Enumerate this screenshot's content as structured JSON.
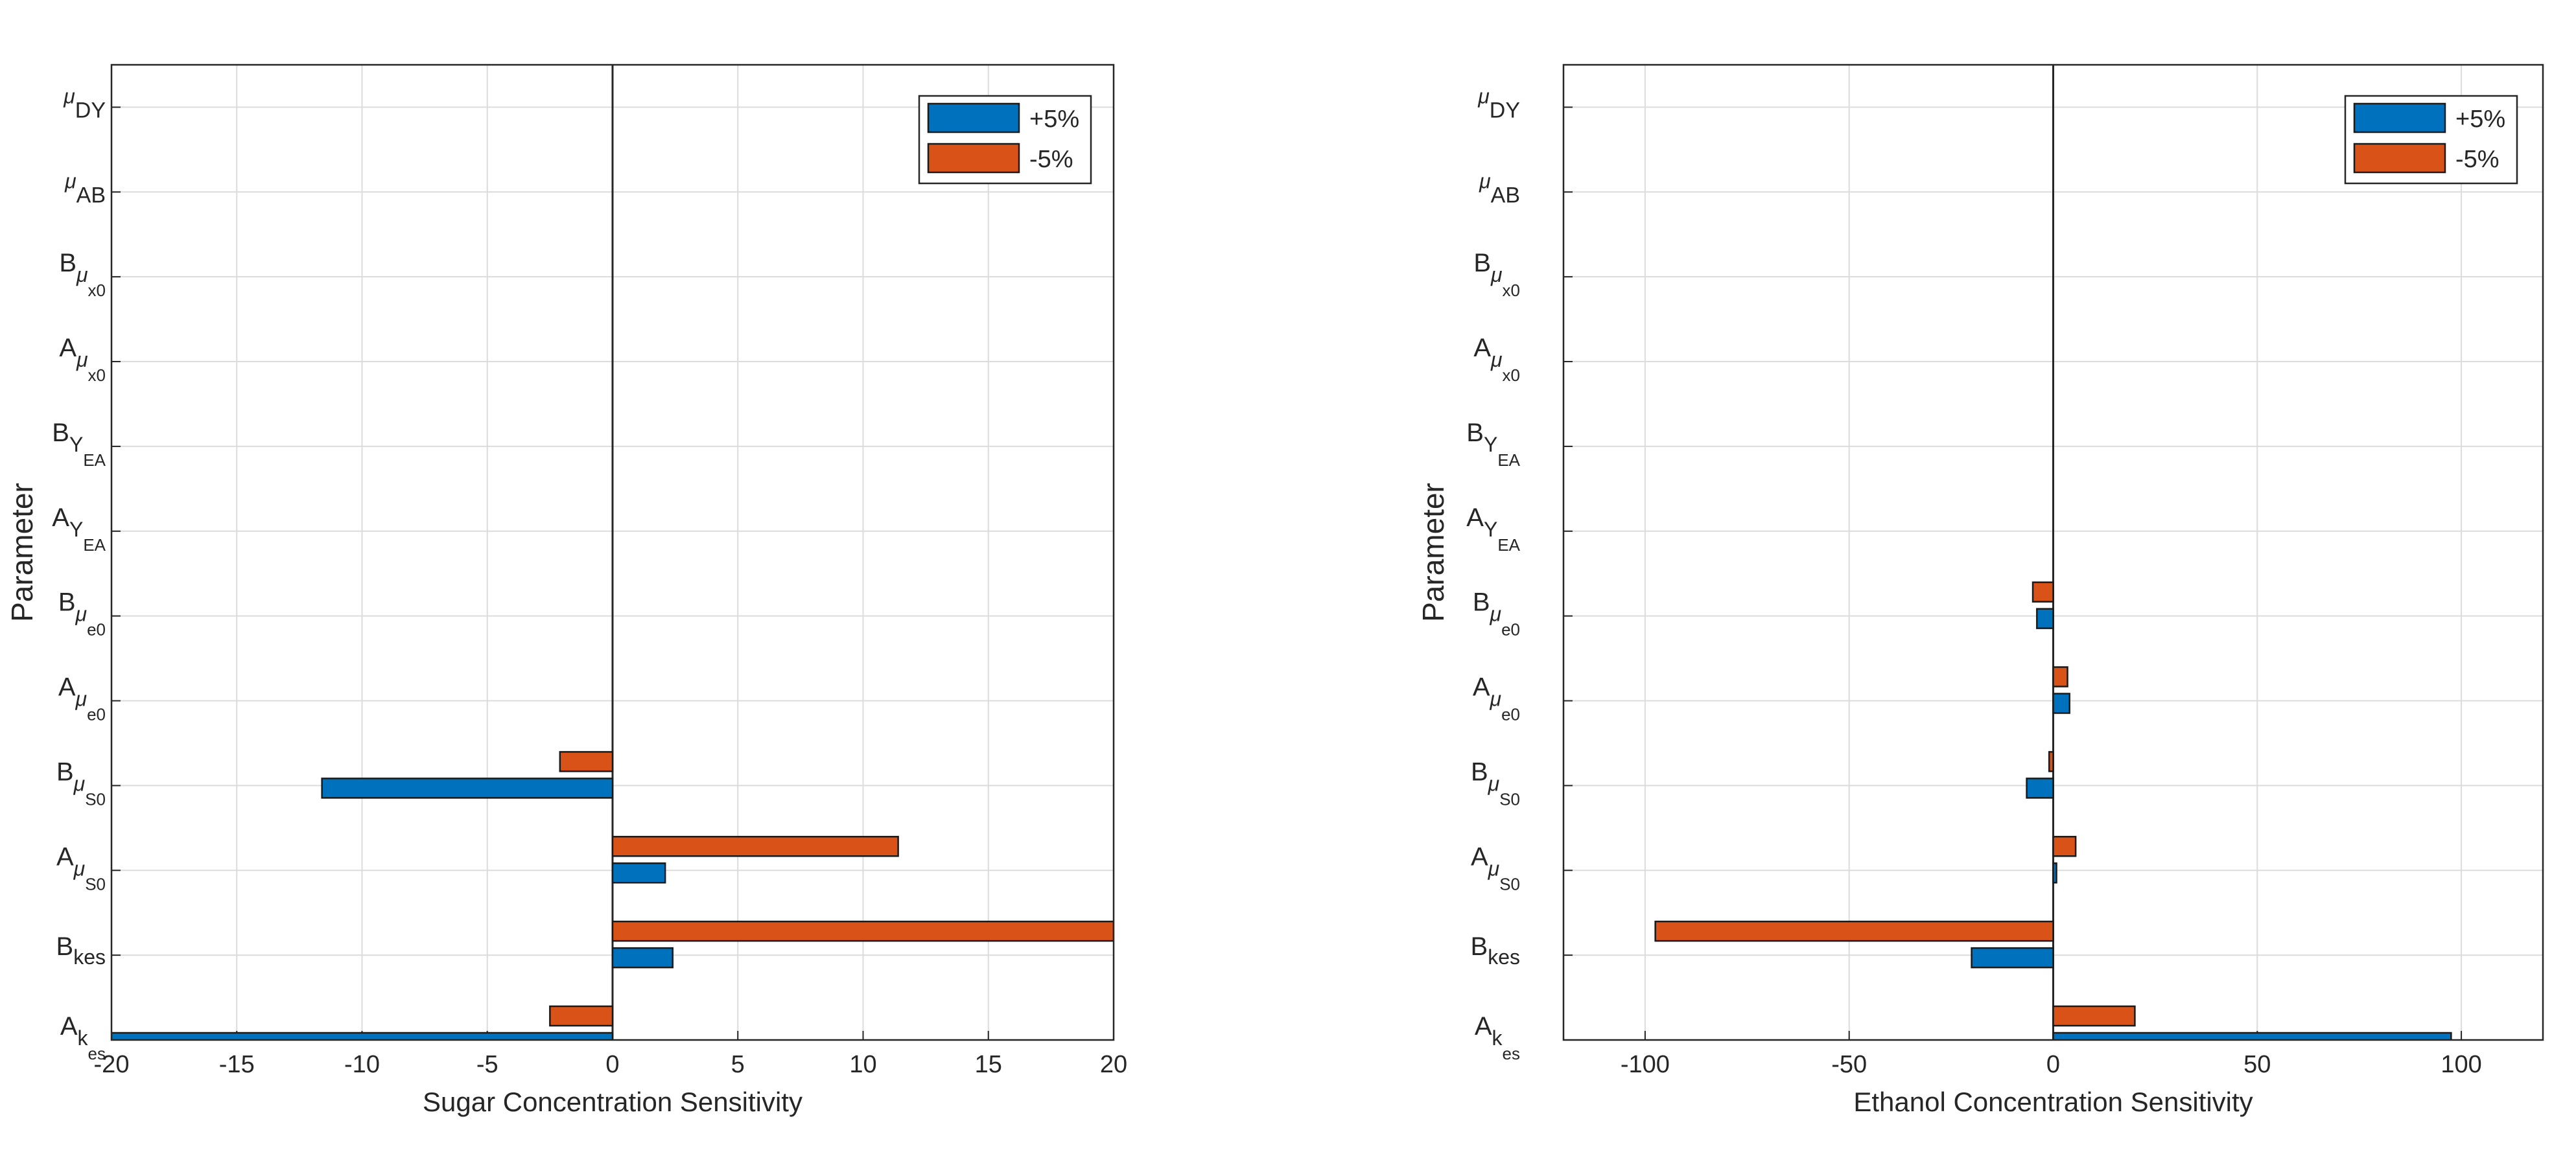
{
  "chart_data": [
    {
      "type": "bar",
      "orientation": "horizontal",
      "xlabel": "Sugar Concentration Sensitivity",
      "ylabel": "Parameter",
      "xlim": [
        -20,
        20
      ],
      "xticks": [
        -20,
        -15,
        -10,
        -5,
        0,
        5,
        10,
        15,
        20
      ],
      "tick_labels": [
        "-20",
        "-15",
        "-10",
        "-5",
        "0",
        "5",
        "10",
        "15",
        "20"
      ],
      "grid": true,
      "legend_position": "top-right",
      "categories": [
        {
          "base": "A",
          "sub": "k",
          "subsub": "es"
        },
        {
          "base": "B",
          "sub": "kes",
          "subsub": ""
        },
        {
          "base": "A",
          "sub": "μ",
          "subsub": "S0"
        },
        {
          "base": "B",
          "sub": "μ",
          "subsub": "S0"
        },
        {
          "base": "A",
          "sub": "μ",
          "subsub": "e0"
        },
        {
          "base": "B",
          "sub": "μ",
          "subsub": "e0"
        },
        {
          "base": "A",
          "sub": "Y",
          "subsub": "EA"
        },
        {
          "base": "B",
          "sub": "Y",
          "subsub": "EA"
        },
        {
          "base": "A",
          "sub": "μ",
          "subsub": "x0"
        },
        {
          "base": "B",
          "sub": "μ",
          "subsub": "x0"
        },
        {
          "base": "μ",
          "sub": "AB",
          "subsub": ""
        },
        {
          "base": "μ",
          "sub": "DY",
          "subsub": ""
        }
      ],
      "series": [
        {
          "name": "+5%",
          "color": "#0072BD",
          "values": [
            -20,
            2.4,
            2.1,
            -11.6,
            0,
            0,
            0,
            0,
            0,
            0,
            0,
            0
          ]
        },
        {
          "name": "-5%",
          "color": "#D95319",
          "values": [
            -2.5,
            20,
            11.4,
            -2.1,
            0,
            0,
            0,
            0,
            0,
            0,
            0,
            0
          ]
        }
      ]
    },
    {
      "type": "bar",
      "orientation": "horizontal",
      "xlabel": "Ethanol Concentration Sensitivity",
      "ylabel": "Parameter",
      "xlim": [
        -120,
        120
      ],
      "xticks": [
        -100,
        -50,
        0,
        50,
        100
      ],
      "tick_labels": [
        "-100",
        "-50",
        "0",
        "50",
        "100"
      ],
      "grid": true,
      "legend_position": "top-right",
      "categories": [
        {
          "base": "A",
          "sub": "k",
          "subsub": "es"
        },
        {
          "base": "B",
          "sub": "kes",
          "subsub": ""
        },
        {
          "base": "A",
          "sub": "μ",
          "subsub": "S0"
        },
        {
          "base": "B",
          "sub": "μ",
          "subsub": "S0"
        },
        {
          "base": "A",
          "sub": "μ",
          "subsub": "e0"
        },
        {
          "base": "B",
          "sub": "μ",
          "subsub": "e0"
        },
        {
          "base": "A",
          "sub": "Y",
          "subsub": "EA"
        },
        {
          "base": "B",
          "sub": "Y",
          "subsub": "EA"
        },
        {
          "base": "A",
          "sub": "μ",
          "subsub": "x0"
        },
        {
          "base": "B",
          "sub": "μ",
          "subsub": "x0"
        },
        {
          "base": "μ",
          "sub": "AB",
          "subsub": ""
        },
        {
          "base": "μ",
          "sub": "DY",
          "subsub": ""
        }
      ],
      "series": [
        {
          "name": "+5%",
          "color": "#0072BD",
          "values": [
            97.5,
            -20,
            0.8,
            -6.5,
            4,
            -4,
            0,
            0,
            0,
            0,
            0,
            0
          ]
        },
        {
          "name": "-5%",
          "color": "#D95319",
          "values": [
            20,
            -97.5,
            5.5,
            -1,
            3.5,
            -5,
            0,
            0,
            0,
            0,
            0,
            0
          ]
        }
      ]
    }
  ]
}
